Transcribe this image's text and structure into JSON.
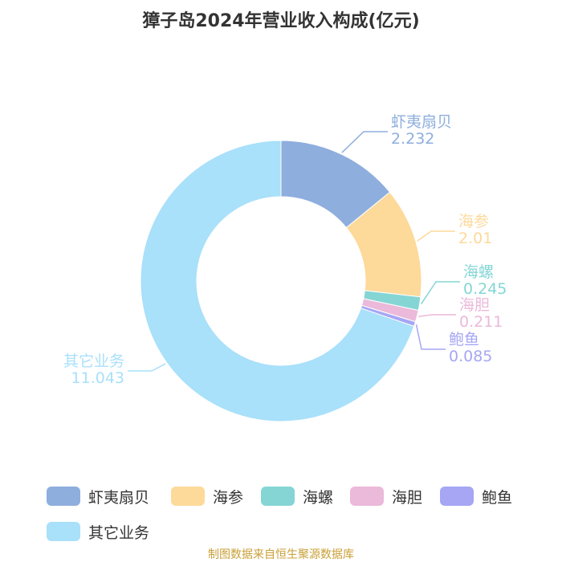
{
  "chart_data": {
    "type": "pie",
    "title": "獐子岛2024年营业收入构成(亿元)",
    "slices": [
      {
        "label": "虾夷扇贝",
        "value": 2.232,
        "value_text": "2.232",
        "color": "#8eaedd"
      },
      {
        "label": "海参",
        "value": 2.01,
        "value_text": "2.01",
        "color": "#fdd99a"
      },
      {
        "label": "海螺",
        "value": 0.245,
        "value_text": "0.245",
        "color": "#85d5d5"
      },
      {
        "label": "海胆",
        "value": 0.211,
        "value_text": "0.211",
        "color": "#ebb9d9"
      },
      {
        "label": "鲍鱼",
        "value": 0.085,
        "value_text": "0.085",
        "color": "#a6a6f5"
      },
      {
        "label": "其它业务",
        "value": 11.043,
        "value_text": "11.043",
        "color": "#a9e0fa"
      }
    ],
    "donut": true,
    "legend_position": "bottom"
  },
  "source": "制图数据来自恒生聚源数据库"
}
